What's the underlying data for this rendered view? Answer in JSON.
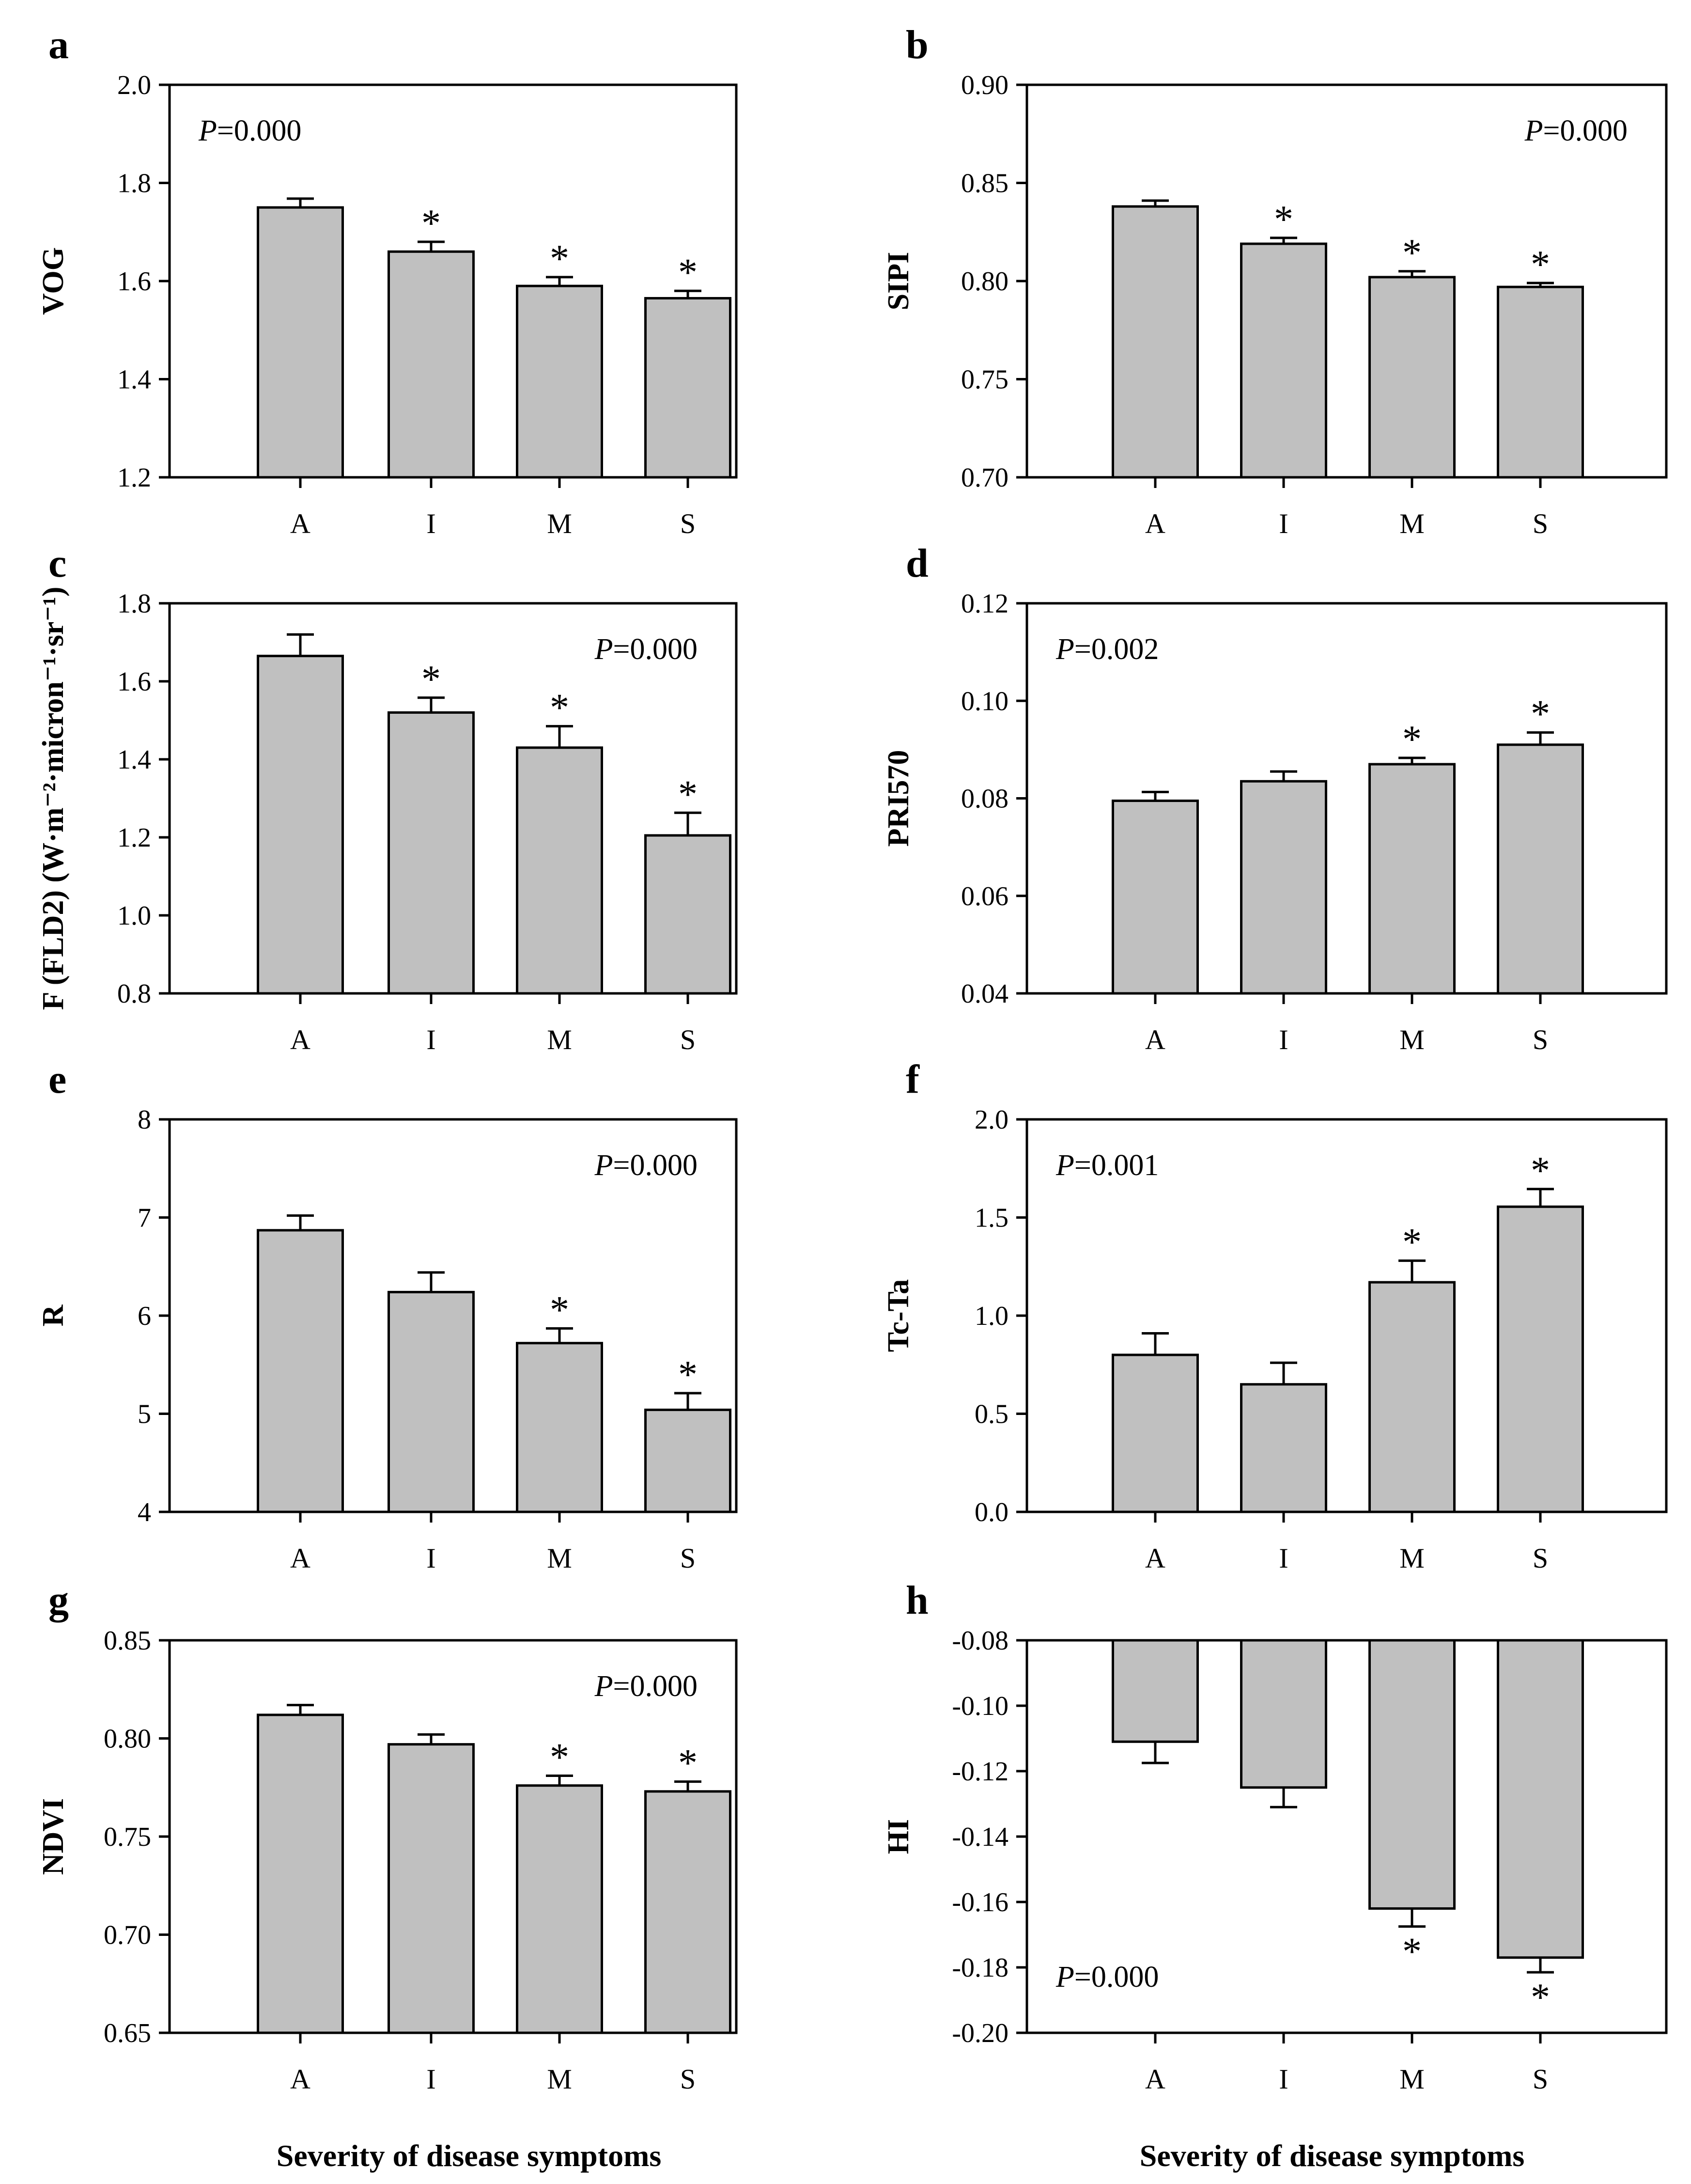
{
  "colors": {
    "bar_fill": "#c0c0c0",
    "stroke": "#000000",
    "background": "#ffffff"
  },
  "x_axis_title": "Severity of disease symptoms",
  "significance_marker": "*",
  "chart_data": [
    {
      "panel": "a",
      "type": "bar",
      "ylabel": "VOG",
      "categories": [
        "A",
        "I",
        "M",
        "S"
      ],
      "values": [
        1.75,
        1.66,
        1.59,
        1.565
      ],
      "errors": [
        0.018,
        0.02,
        0.018,
        0.015
      ],
      "significant": [
        false,
        true,
        true,
        true
      ],
      "ylim": [
        1.2,
        2.0
      ],
      "yticks": [
        1.2,
        1.4,
        1.6,
        1.8,
        2.0
      ],
      "ytick_labels": [
        "1.2",
        "1.4",
        "1.6",
        "1.8",
        "2.0"
      ],
      "p_prefix": "P",
      "p_text": "=0.000",
      "p_position": "top-left",
      "error_direction": "up"
    },
    {
      "panel": "b",
      "type": "bar",
      "ylabel": "SIPI",
      "categories": [
        "A",
        "I",
        "M",
        "S"
      ],
      "values": [
        0.838,
        0.819,
        0.802,
        0.797
      ],
      "errors": [
        0.003,
        0.003,
        0.003,
        0.002
      ],
      "significant": [
        false,
        true,
        true,
        true
      ],
      "ylim": [
        0.7,
        0.9
      ],
      "yticks": [
        0.7,
        0.75,
        0.8,
        0.85,
        0.9
      ],
      "ytick_labels": [
        "0.70",
        "0.75",
        "0.80",
        "0.85",
        "0.90"
      ],
      "p_prefix": "P",
      "p_text": "=0.000",
      "p_position": "top-right",
      "error_direction": "up"
    },
    {
      "panel": "c",
      "type": "bar",
      "ylabel": "F (FLD2) (W·m⁻²·micron⁻¹·sr⁻¹)",
      "categories": [
        "A",
        "I",
        "M",
        "S"
      ],
      "values": [
        1.665,
        1.52,
        1.43,
        1.205
      ],
      "errors": [
        0.055,
        0.038,
        0.055,
        0.058
      ],
      "significant": [
        false,
        true,
        true,
        true
      ],
      "ylim": [
        0.8,
        1.8
      ],
      "yticks": [
        0.8,
        1.0,
        1.2,
        1.4,
        1.6,
        1.8
      ],
      "ytick_labels": [
        "0.8",
        "1.0",
        "1.2",
        "1.4",
        "1.6",
        "1.8"
      ],
      "p_prefix": "P",
      "p_text": "=0.000",
      "p_position": "top-right",
      "error_direction": "up"
    },
    {
      "panel": "d",
      "type": "bar",
      "ylabel": "PRI570",
      "categories": [
        "A",
        "I",
        "M",
        "S"
      ],
      "values": [
        0.0795,
        0.0835,
        0.087,
        0.091
      ],
      "errors": [
        0.0018,
        0.002,
        0.0013,
        0.0025
      ],
      "significant": [
        false,
        false,
        true,
        true
      ],
      "ylim": [
        0.04,
        0.12
      ],
      "yticks": [
        0.04,
        0.06,
        0.08,
        0.1,
        0.12
      ],
      "ytick_labels": [
        "0.04",
        "0.06",
        "0.08",
        "0.10",
        "0.12"
      ],
      "p_prefix": "P",
      "p_text": "=0.002",
      "p_position": "top-left",
      "error_direction": "up"
    },
    {
      "panel": "e",
      "type": "bar",
      "ylabel": "R",
      "categories": [
        "A",
        "I",
        "M",
        "S"
      ],
      "values": [
        6.87,
        6.24,
        5.72,
        5.04
      ],
      "errors": [
        0.15,
        0.2,
        0.15,
        0.17
      ],
      "significant": [
        false,
        false,
        true,
        true
      ],
      "ylim": [
        4,
        8
      ],
      "yticks": [
        4,
        5,
        6,
        7,
        8
      ],
      "ytick_labels": [
        "4",
        "5",
        "6",
        "7",
        "8"
      ],
      "p_prefix": "P",
      "p_text": "=0.000",
      "p_position": "top-right",
      "error_direction": "up"
    },
    {
      "panel": "f",
      "type": "bar",
      "ylabel": "Tc-Ta",
      "categories": [
        "A",
        "I",
        "M",
        "S"
      ],
      "values": [
        0.8,
        0.65,
        1.17,
        1.555
      ],
      "errors": [
        0.11,
        0.11,
        0.11,
        0.09
      ],
      "significant": [
        false,
        false,
        true,
        true
      ],
      "ylim": [
        0.0,
        2.0
      ],
      "yticks": [
        0.0,
        0.5,
        1.0,
        1.5,
        2.0
      ],
      "ytick_labels": [
        "0.0",
        "0.5",
        "1.0",
        "1.5",
        "2.0"
      ],
      "p_prefix": "P",
      "p_text": "=0.001",
      "p_position": "top-left",
      "error_direction": "up"
    },
    {
      "panel": "g",
      "type": "bar",
      "ylabel": "NDVI",
      "categories": [
        "A",
        "I",
        "M",
        "S"
      ],
      "values": [
        0.812,
        0.797,
        0.776,
        0.773
      ],
      "errors": [
        0.005,
        0.005,
        0.005,
        0.005
      ],
      "significant": [
        false,
        false,
        true,
        true
      ],
      "ylim": [
        0.65,
        0.85
      ],
      "yticks": [
        0.65,
        0.7,
        0.75,
        0.8,
        0.85
      ],
      "ytick_labels": [
        "0.65",
        "0.70",
        "0.75",
        "0.80",
        "0.85"
      ],
      "p_prefix": "P",
      "p_text": "=0.000",
      "p_position": "top-right",
      "error_direction": "up"
    },
    {
      "panel": "h",
      "type": "bar",
      "ylabel": "HI",
      "categories": [
        "A",
        "I",
        "M",
        "S"
      ],
      "values": [
        -0.111,
        -0.125,
        -0.162,
        -0.177
      ],
      "errors": [
        0.0065,
        0.006,
        0.0055,
        0.0045
      ],
      "significant": [
        false,
        false,
        true,
        true
      ],
      "ylim": [
        -0.2,
        -0.08
      ],
      "yticks": [
        -0.2,
        -0.18,
        -0.16,
        -0.14,
        -0.12,
        -0.1,
        -0.08
      ],
      "ytick_labels": [
        "-0.20",
        "-0.18",
        "-0.16",
        "-0.14",
        "-0.12",
        "-0.10",
        "-0.08"
      ],
      "p_prefix": "P",
      "p_text": "=0.000",
      "p_position": "bottom-left",
      "error_direction": "down"
    }
  ]
}
